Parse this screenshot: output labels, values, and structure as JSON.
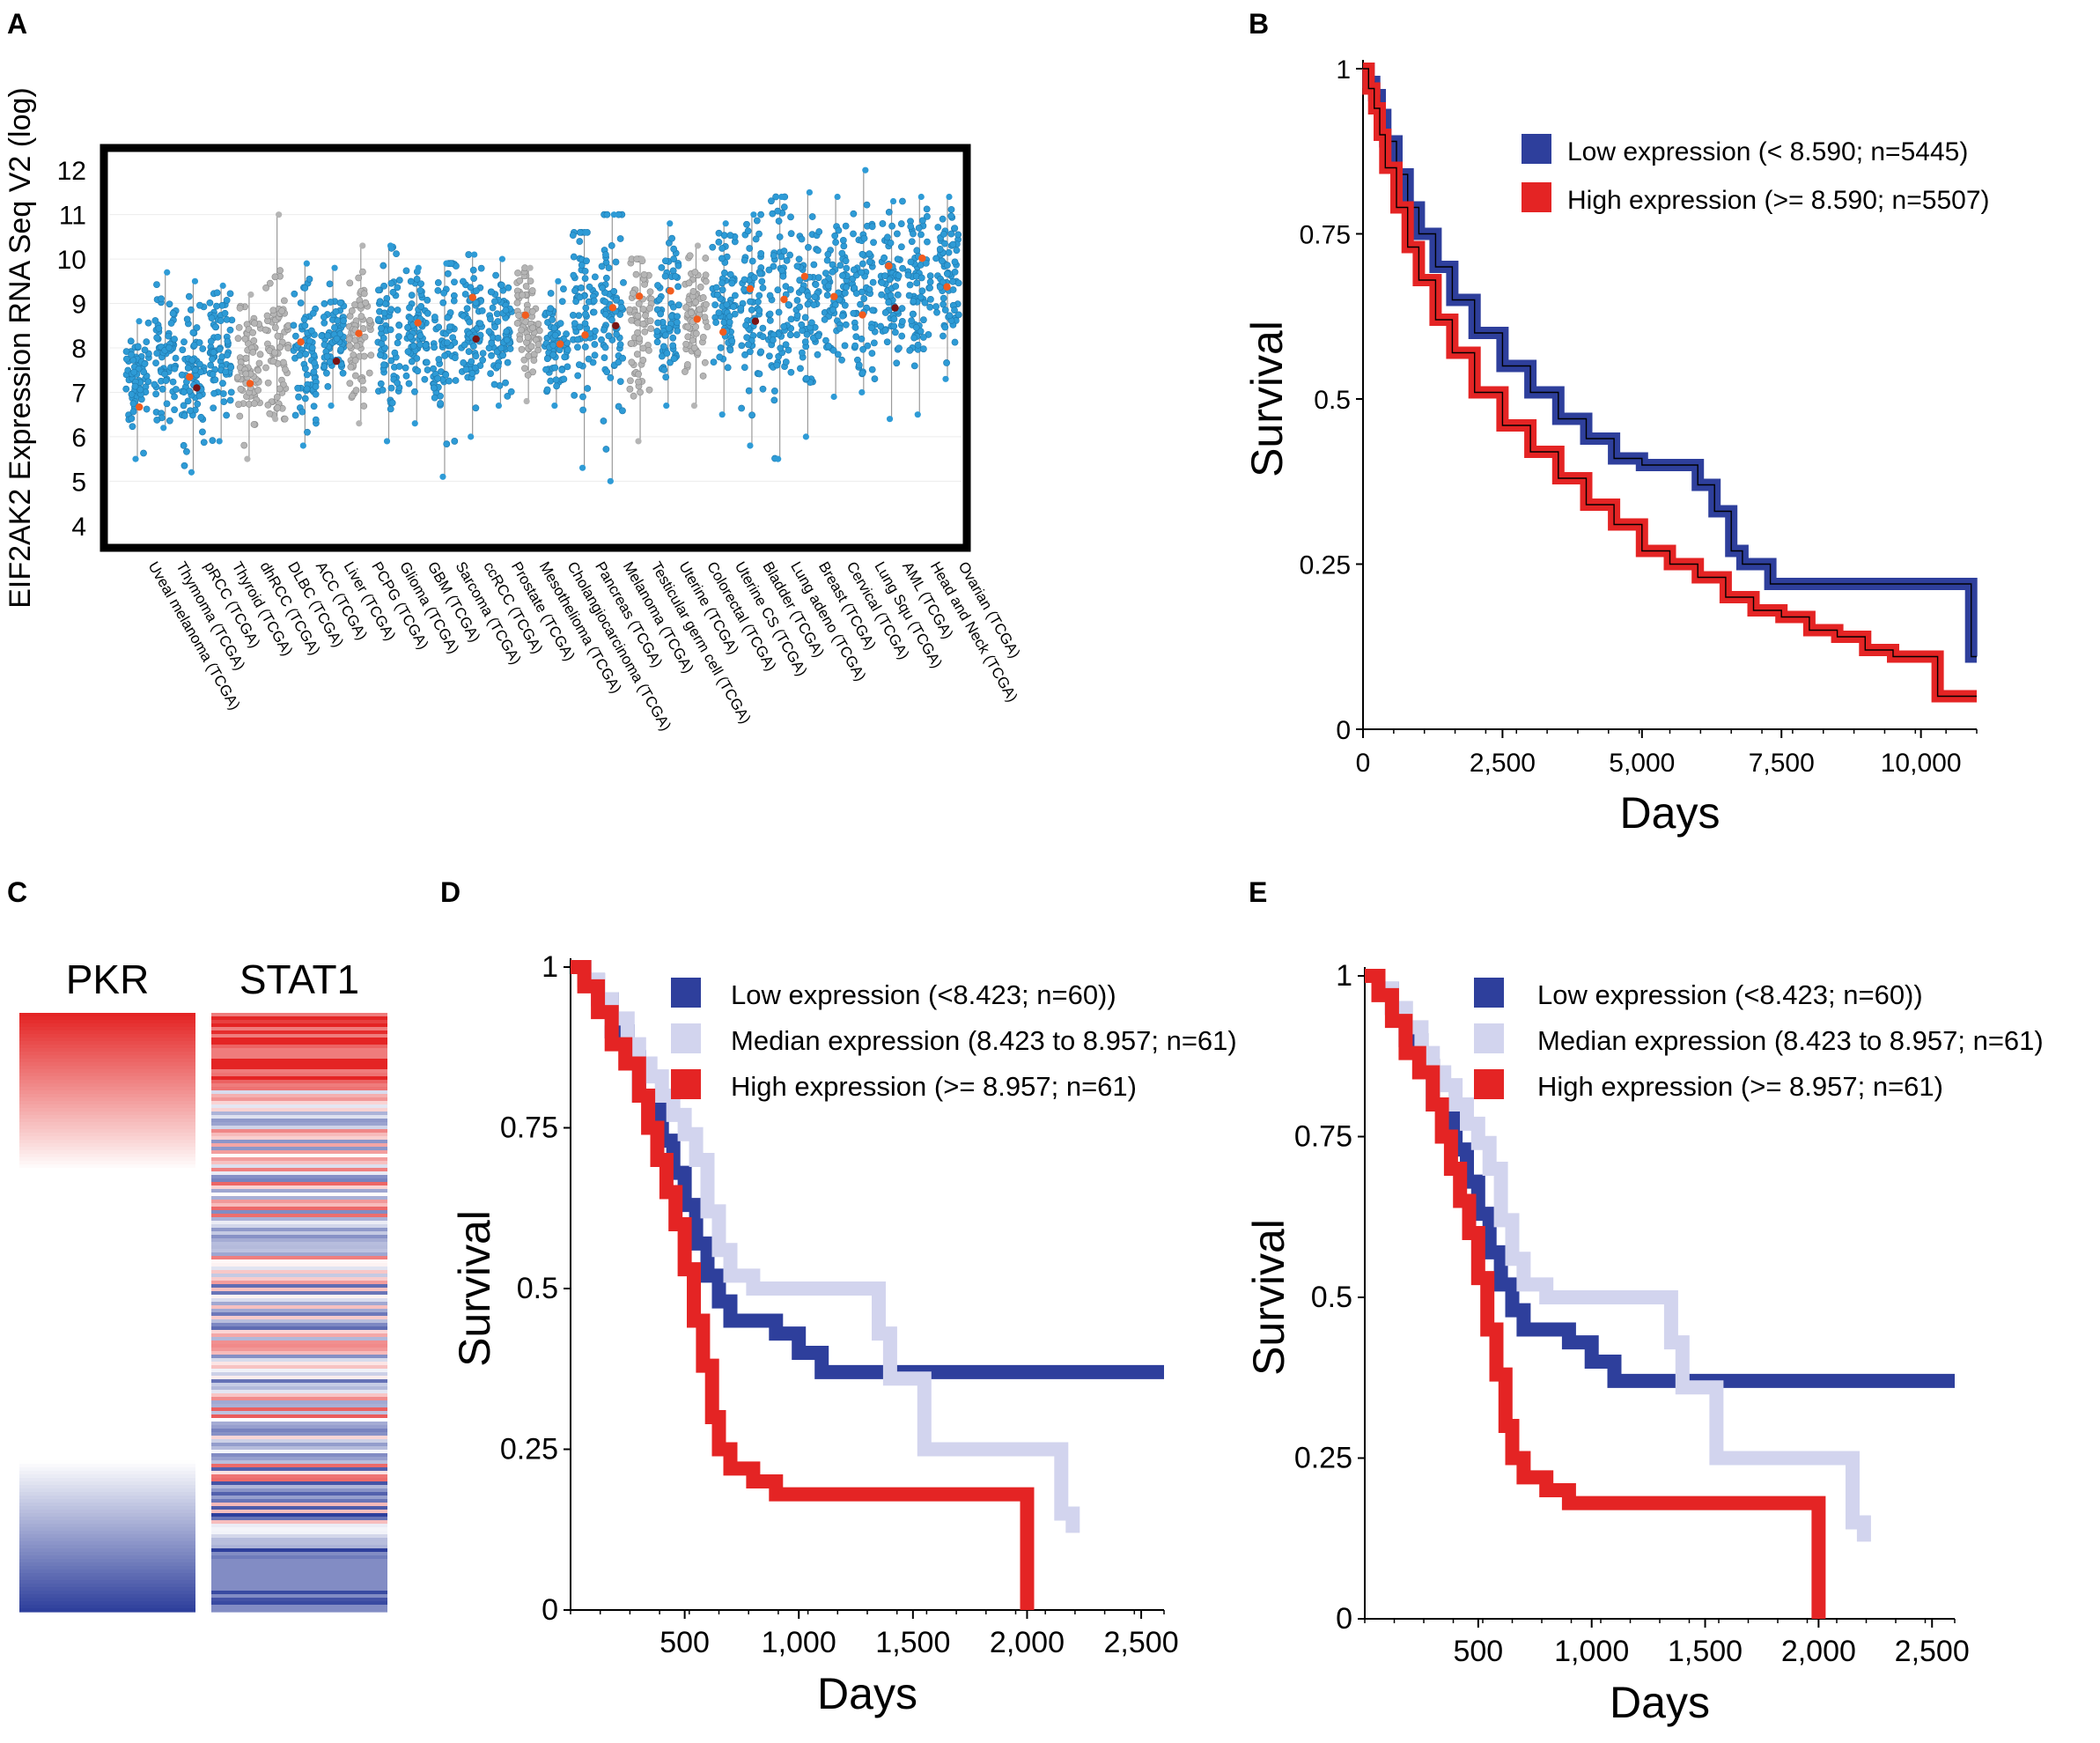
{
  "panel_labels": {
    "a": "A",
    "b": "B",
    "c": "C",
    "d": "D",
    "e": "E"
  },
  "colors": {
    "blue": "#2e3f9c",
    "red": "#e42424",
    "lavender": "#d2d4ee",
    "dot_blue": "#2e9bd6",
    "dot_grey": "#b5b5b5",
    "dot_orange": "#f25c1e",
    "dot_dark": "#7a1414"
  },
  "chart_data": [
    {
      "id": "A",
      "type": "scatter",
      "title": "",
      "ylabel": "EIF2AK2 Expression RNA Seq V2 (log)",
      "xlabel": "",
      "ylim": [
        3.5,
        12.5
      ],
      "yticks": [
        "12",
        "11",
        "10",
        "9",
        "8",
        "7",
        "6",
        "5",
        "4"
      ],
      "categories": [
        "Uveal melanoma (TCGA)",
        "Thymoma (TCGA)",
        "pRCC (TCGA)",
        "Thyroid (TCGA)",
        "dhRCC (TCGA)",
        "DLBC (TCGA)",
        "ACC (TCGA)",
        "Liver (TCGA)",
        "PCPG (TCGA)",
        "Glioma (TCGA)",
        "GBM (TCGA)",
        "Sarcoma (TCGA)",
        "ccRCC (TCGA)",
        "Prostate (TCGA)",
        "Mesothelioma (TCGA)",
        "Cholangiocarcinoma (TCGA)",
        "Pancreas (TCGA)",
        "Melanoma (TCGA)",
        "Testicular germ cell (TCGA)",
        "Uterine (TCGA)",
        "Colorectal (TCGA)",
        "Uterine CS (TCGA)",
        "Bladder (TCGA)",
        "Lung adeno (TCGA)",
        "Breast (TCGA)",
        "Cervical (TCGA)",
        "Lung Squ (TCGA)",
        "AML (TCGA)",
        "Head and Neck (TCGA)",
        "Ovarian (TCGA)"
      ],
      "series": [
        {
          "name": "Expression",
          "median": [
            7.2,
            7.8,
            7.5,
            7.9,
            7.6,
            8.0,
            7.7,
            8.1,
            8.2,
            8.3,
            8.4,
            8.2,
            8.6,
            8.3,
            8.6,
            8.1,
            8.7,
            8.9,
            8.7,
            8.9,
            8.7,
            8.9,
            9.0,
            9.1,
            9.1,
            9.3,
            9.2,
            9.3,
            9.5,
            9.6
          ],
          "min": [
            5.5,
            6.2,
            5.2,
            5.9,
            5.5,
            6.4,
            5.8,
            6.7,
            6.3,
            5.9,
            6.3,
            5.1,
            6.0,
            6.7,
            6.8,
            6.7,
            5.3,
            5.0,
            5.9,
            6.7,
            6.7,
            6.5,
            5.8,
            5.5,
            6.0,
            6.9,
            7.0,
            6.4,
            6.5,
            7.3
          ],
          "max": [
            8.6,
            9.7,
            9.5,
            9.4,
            9.2,
            11.0,
            9.9,
            9.8,
            10.3,
            10.3,
            9.8,
            9.9,
            10.1,
            10.0,
            9.8,
            9.5,
            10.6,
            11.0,
            10.0,
            10.8,
            10.3,
            10.8,
            11.0,
            11.4,
            11.5,
            11.4,
            12.0,
            11.3,
            11.4,
            11.4
          ],
          "grey": [
            false,
            false,
            false,
            false,
            true,
            true,
            false,
            false,
            true,
            false,
            false,
            false,
            false,
            false,
            true,
            false,
            false,
            false,
            true,
            false,
            true,
            false,
            false,
            false,
            false,
            false,
            false,
            false,
            false,
            false
          ]
        }
      ]
    },
    {
      "id": "B",
      "type": "line",
      "title": "",
      "xlabel": "Days",
      "ylabel": "Survival",
      "xlim": [
        0,
        11000
      ],
      "ylim": [
        0,
        1
      ],
      "xticks": [
        0,
        2500,
        5000,
        7500,
        10000
      ],
      "xtick_labels": [
        "0",
        "2,500",
        "5,000",
        "7,500",
        "10,000"
      ],
      "yticks": [
        0,
        0.25,
        0.5,
        0.75,
        1
      ],
      "ytick_labels": [
        "0",
        "0.25",
        "0.5",
        "0.75",
        "1"
      ],
      "legend": [
        "Low expression (< 8.590; n=5445)",
        "High expression (>= 8.590; n=5507)"
      ],
      "series": [
        {
          "name": "Low expression (< 8.590; n=5445)",
          "color": "blue",
          "x": [
            0,
            100,
            200,
            300,
            400,
            600,
            800,
            1000,
            1300,
            1600,
            2000,
            2500,
            3000,
            3500,
            4000,
            4500,
            5000,
            5600,
            6000,
            6300,
            6600,
            6800,
            7300,
            7500,
            8000,
            9000,
            10000,
            10900,
            11000
          ],
          "y": [
            1,
            0.98,
            0.96,
            0.93,
            0.89,
            0.84,
            0.79,
            0.75,
            0.7,
            0.65,
            0.6,
            0.55,
            0.51,
            0.47,
            0.44,
            0.41,
            0.4,
            0.4,
            0.37,
            0.33,
            0.27,
            0.25,
            0.22,
            0.22,
            0.22,
            0.22,
            0.22,
            0.11,
            0.11
          ]
        },
        {
          "name": "High expression (>= 8.590; n=5507)",
          "color": "red",
          "x": [
            0,
            100,
            200,
            300,
            400,
            600,
            800,
            1000,
            1300,
            1600,
            2000,
            2500,
            3000,
            3500,
            4000,
            4500,
            5000,
            5500,
            6000,
            6500,
            7000,
            7500,
            8000,
            8500,
            9000,
            9500,
            10000,
            10300,
            11000
          ],
          "y": [
            1,
            0.97,
            0.94,
            0.9,
            0.85,
            0.79,
            0.73,
            0.68,
            0.62,
            0.57,
            0.51,
            0.46,
            0.42,
            0.38,
            0.34,
            0.31,
            0.27,
            0.25,
            0.23,
            0.2,
            0.18,
            0.17,
            0.15,
            0.14,
            0.12,
            0.11,
            0.11,
            0.05,
            0.05
          ]
        }
      ]
    },
    {
      "id": "C",
      "type": "heatmap",
      "columns": [
        "PKR",
        "STAT1"
      ]
    },
    {
      "id": "D",
      "type": "line",
      "title": "",
      "xlabel": "Days",
      "ylabel": "Survival",
      "xlim": [
        0,
        2600
      ],
      "ylim": [
        0,
        1
      ],
      "xticks": [
        500,
        1000,
        1500,
        2000,
        2500
      ],
      "xtick_labels": [
        "500",
        "1,000",
        "1,500",
        "2,000",
        "2,500"
      ],
      "yticks": [
        0,
        0.25,
        0.5,
        0.75,
        1
      ],
      "ytick_labels": [
        "0",
        "0.25",
        "0.5",
        "0.75",
        "1"
      ],
      "legend": [
        "Low expression (<8.423; n=60))",
        "Median expression (8.423 to 8.957; n=61)",
        "High expression (>= 8.957; n=61)"
      ],
      "series": [
        {
          "name": "Low expression (<8.423; n=60))",
          "color": "blue",
          "x": [
            0,
            60,
            120,
            180,
            250,
            300,
            350,
            400,
            450,
            500,
            550,
            600,
            650,
            700,
            800,
            900,
            1000,
            1100,
            1300,
            1400,
            1500,
            1600,
            2600
          ],
          "y": [
            1,
            0.98,
            0.95,
            0.9,
            0.86,
            0.8,
            0.78,
            0.73,
            0.68,
            0.63,
            0.57,
            0.52,
            0.48,
            0.45,
            0.45,
            0.43,
            0.4,
            0.37,
            0.37,
            0.37,
            0.37,
            0.37,
            0.37
          ]
        },
        {
          "name": "Median expression (8.423 to 8.957; n=61)",
          "color": "lavender",
          "x": [
            0,
            60,
            120,
            180,
            250,
            300,
            350,
            400,
            450,
            500,
            550,
            600,
            650,
            700,
            800,
            1000,
            1200,
            1300,
            1350,
            1400,
            1500,
            1550,
            1700,
            2000,
            2100,
            2150,
            2200
          ],
          "y": [
            1,
            0.98,
            0.95,
            0.92,
            0.88,
            0.85,
            0.83,
            0.8,
            0.77,
            0.74,
            0.7,
            0.62,
            0.56,
            0.52,
            0.5,
            0.5,
            0.5,
            0.5,
            0.43,
            0.36,
            0.36,
            0.25,
            0.25,
            0.25,
            0.25,
            0.15,
            0.12
          ]
        },
        {
          "name": "High expression (>= 8.957; n=61)",
          "color": "red",
          "x": [
            0,
            60,
            120,
            180,
            240,
            300,
            340,
            380,
            420,
            460,
            500,
            540,
            580,
            620,
            650,
            700,
            800,
            900,
            1000,
            1200,
            1400,
            1600,
            1800,
            1900,
            1950,
            2000
          ],
          "y": [
            1,
            0.97,
            0.93,
            0.88,
            0.85,
            0.8,
            0.75,
            0.7,
            0.65,
            0.6,
            0.53,
            0.45,
            0.38,
            0.3,
            0.25,
            0.22,
            0.2,
            0.18,
            0.18,
            0.18,
            0.18,
            0.18,
            0.18,
            0.18,
            0.18,
            0.0
          ]
        }
      ]
    },
    {
      "id": "E",
      "type": "line",
      "title": "",
      "xlabel": "Days",
      "ylabel": "Survival",
      "xlim": [
        0,
        2600
      ],
      "ylim": [
        0,
        1
      ],
      "xticks": [
        500,
        1000,
        1500,
        2000,
        2500
      ],
      "xtick_labels": [
        "500",
        "1,000",
        "1,500",
        "2,000",
        "2,500"
      ],
      "yticks": [
        0,
        0.25,
        0.5,
        0.75,
        1
      ],
      "ytick_labels": [
        "0",
        "0.25",
        "0.5",
        "0.75",
        "1"
      ],
      "legend": [
        "Low expression (<8.423; n=60))",
        "Median expression (8.423 to 8.957; n=61)",
        "High expression (>= 8.957; n=61)"
      ],
      "series": [
        {
          "name": "Low expression (<8.423; n=60))",
          "color": "blue",
          "x": [
            0,
            60,
            120,
            180,
            250,
            300,
            350,
            400,
            450,
            500,
            550,
            600,
            650,
            700,
            800,
            900,
            1000,
            1100,
            1300,
            1400,
            1500,
            1600,
            2600
          ],
          "y": [
            1,
            0.98,
            0.95,
            0.9,
            0.86,
            0.8,
            0.78,
            0.73,
            0.68,
            0.63,
            0.57,
            0.52,
            0.48,
            0.45,
            0.45,
            0.43,
            0.4,
            0.37,
            0.37,
            0.37,
            0.37,
            0.37,
            0.37
          ]
        },
        {
          "name": "Median expression (8.423 to 8.957; n=61)",
          "color": "lavender",
          "x": [
            0,
            60,
            120,
            180,
            250,
            300,
            350,
            400,
            450,
            500,
            550,
            600,
            650,
            700,
            800,
            1000,
            1200,
            1300,
            1350,
            1400,
            1500,
            1550,
            1700,
            2000,
            2100,
            2150,
            2200
          ],
          "y": [
            1,
            0.98,
            0.95,
            0.92,
            0.88,
            0.85,
            0.83,
            0.8,
            0.77,
            0.74,
            0.7,
            0.62,
            0.56,
            0.52,
            0.5,
            0.5,
            0.5,
            0.5,
            0.43,
            0.36,
            0.36,
            0.25,
            0.25,
            0.25,
            0.25,
            0.15,
            0.12
          ]
        },
        {
          "name": "High expression (>= 8.957; n=61)",
          "color": "red",
          "x": [
            0,
            60,
            120,
            180,
            240,
            300,
            340,
            380,
            420,
            460,
            500,
            540,
            580,
            620,
            650,
            700,
            800,
            900,
            1000,
            1200,
            1400,
            1600,
            1800,
            1900,
            1950,
            2000
          ],
          "y": [
            1,
            0.97,
            0.93,
            0.88,
            0.85,
            0.8,
            0.75,
            0.7,
            0.65,
            0.6,
            0.53,
            0.45,
            0.38,
            0.3,
            0.25,
            0.22,
            0.2,
            0.18,
            0.18,
            0.18,
            0.18,
            0.18,
            0.18,
            0.18,
            0.18,
            0.0
          ]
        }
      ]
    }
  ]
}
